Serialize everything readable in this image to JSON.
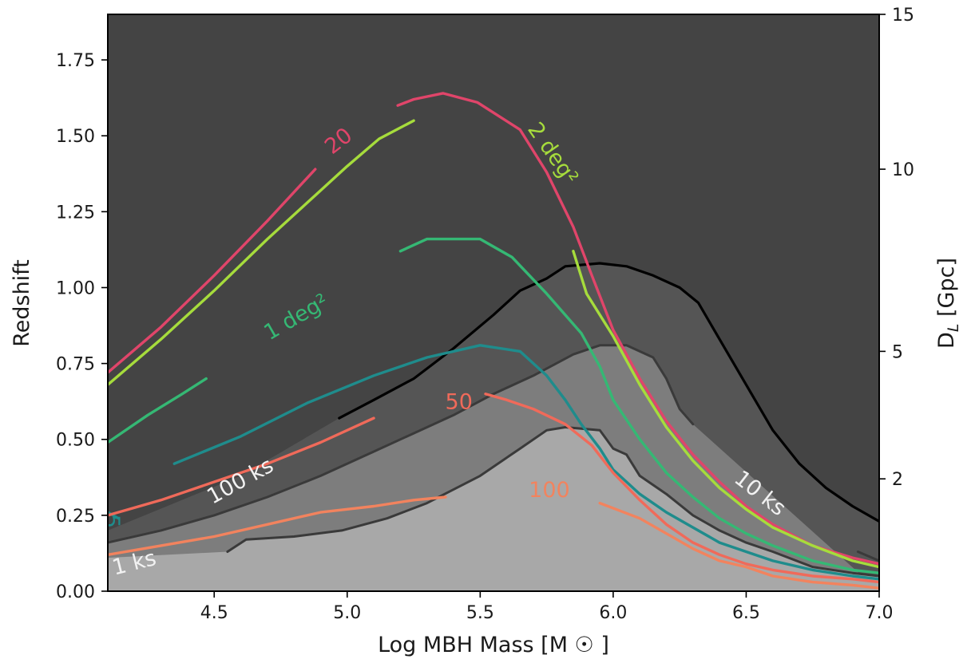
{
  "chart_data": {
    "type": "line",
    "xlabel": "Log MBH Mass [M ☉ ]",
    "ylabel": "Redshift",
    "y2label": "D_L [Gpc]",
    "xlim": [
      4.1,
      7.0
    ],
    "ylim": [
      0.0,
      1.9
    ],
    "xticks": [
      "4.5",
      "5.0",
      "5.5",
      "6.0",
      "6.5",
      "7.0"
    ],
    "yticks": [
      "0.00",
      "0.25",
      "0.50",
      "0.75",
      "1.00",
      "1.25",
      "1.50",
      "1.75"
    ],
    "y2ticks": [
      {
        "label": "2",
        "z": 0.37
      },
      {
        "label": "5",
        "z": 0.79
      },
      {
        "label": "10",
        "z": 1.39
      },
      {
        "label": "15",
        "z": 1.93
      }
    ],
    "colors": {
      "background": "#444444",
      "fill_light": "#a8a8a8",
      "black": "#000000",
      "grey": "#3a3a3a",
      "pink": "#e0456a",
      "lime": "#a6dc3c",
      "green": "#35b874",
      "teal": "#1f8c8c",
      "salmon": "#f06a5a",
      "orange": "#f2835e"
    },
    "series": [
      {
        "style": "grey",
        "points": [
          [
            4.55,
            0.13
          ],
          [
            4.62,
            0.17
          ],
          [
            4.8,
            0.18
          ],
          [
            4.98,
            0.2
          ],
          [
            5.15,
            0.24
          ],
          [
            5.3,
            0.29
          ],
          [
            5.5,
            0.38
          ],
          [
            5.65,
            0.47
          ],
          [
            5.75,
            0.53
          ],
          [
            5.82,
            0.54
          ],
          [
            5.95,
            0.53
          ],
          [
            6.0,
            0.47
          ],
          [
            6.05,
            0.45
          ],
          [
            6.1,
            0.38
          ],
          [
            6.2,
            0.32
          ],
          [
            6.3,
            0.25
          ],
          [
            6.4,
            0.2
          ],
          [
            6.5,
            0.16
          ],
          [
            6.6,
            0.13
          ],
          [
            6.75,
            0.08
          ],
          [
            6.9,
            0.06
          ],
          [
            7.0,
            0.05
          ]
        ]
      },
      {
        "style": "grey",
        "points": [
          [
            4.1,
            0.16
          ],
          [
            4.3,
            0.2
          ],
          [
            4.5,
            0.25
          ],
          [
            4.7,
            0.31
          ],
          [
            4.9,
            0.38
          ],
          [
            5.1,
            0.46
          ],
          [
            5.25,
            0.52
          ],
          [
            5.4,
            0.58
          ],
          [
            5.55,
            0.65
          ],
          [
            5.7,
            0.71
          ],
          [
            5.85,
            0.78
          ],
          [
            5.95,
            0.81
          ],
          [
            6.05,
            0.81
          ],
          [
            6.15,
            0.77
          ],
          [
            6.2,
            0.7
          ],
          [
            6.25,
            0.6
          ],
          [
            6.3,
            0.55
          ]
        ]
      },
      {
        "style": "grey",
        "points": [
          [
            6.92,
            0.13
          ],
          [
            7.0,
            0.1
          ]
        ]
      },
      {
        "style": "black",
        "points": [
          [
            4.97,
            0.57
          ],
          [
            5.1,
            0.63
          ],
          [
            5.25,
            0.7
          ],
          [
            5.4,
            0.8
          ],
          [
            5.55,
            0.91
          ],
          [
            5.65,
            0.99
          ],
          [
            5.75,
            1.03
          ],
          [
            5.82,
            1.07
          ],
          [
            5.95,
            1.08
          ],
          [
            6.05,
            1.07
          ],
          [
            6.15,
            1.04
          ],
          [
            6.25,
            1.0
          ],
          [
            6.32,
            0.95
          ],
          [
            6.4,
            0.83
          ],
          [
            6.5,
            0.68
          ],
          [
            6.6,
            0.53
          ],
          [
            6.7,
            0.42
          ],
          [
            6.8,
            0.34
          ],
          [
            6.9,
            0.28
          ],
          [
            7.0,
            0.23
          ]
        ]
      },
      {
        "style": "pink",
        "points": [
          [
            4.1,
            0.72
          ],
          [
            4.3,
            0.87
          ],
          [
            4.5,
            1.04
          ],
          [
            4.7,
            1.22
          ],
          [
            4.88,
            1.39
          ]
        ]
      },
      {
        "style": "pink",
        "points": [
          [
            5.19,
            1.6
          ],
          [
            5.25,
            1.62
          ],
          [
            5.36,
            1.64
          ],
          [
            5.49,
            1.61
          ],
          [
            5.65,
            1.52
          ],
          [
            5.75,
            1.38
          ],
          [
            5.85,
            1.2
          ],
          [
            5.92,
            1.04
          ],
          [
            6.0,
            0.86
          ],
          [
            6.1,
            0.7
          ],
          [
            6.2,
            0.56
          ],
          [
            6.3,
            0.45
          ],
          [
            6.4,
            0.36
          ],
          [
            6.5,
            0.28
          ],
          [
            6.6,
            0.22
          ],
          [
            6.75,
            0.15
          ],
          [
            6.9,
            0.11
          ],
          [
            7.0,
            0.09
          ]
        ]
      },
      {
        "style": "lime",
        "points": [
          [
            4.1,
            0.68
          ],
          [
            4.3,
            0.83
          ],
          [
            4.5,
            0.99
          ],
          [
            4.7,
            1.16
          ],
          [
            4.9,
            1.32
          ],
          [
            5.0,
            1.4
          ],
          [
            5.12,
            1.49
          ],
          [
            5.25,
            1.55
          ]
        ]
      },
      {
        "style": "lime",
        "points": [
          [
            5.85,
            1.12
          ],
          [
            5.9,
            0.98
          ],
          [
            6.0,
            0.84
          ],
          [
            6.1,
            0.68
          ],
          [
            6.2,
            0.54
          ],
          [
            6.3,
            0.43
          ],
          [
            6.4,
            0.34
          ],
          [
            6.5,
            0.27
          ],
          [
            6.6,
            0.21
          ],
          [
            6.75,
            0.15
          ],
          [
            6.9,
            0.1
          ],
          [
            7.0,
            0.08
          ]
        ]
      },
      {
        "style": "green",
        "points": [
          [
            4.1,
            0.49
          ],
          [
            4.25,
            0.58
          ],
          [
            4.38,
            0.65
          ],
          [
            4.47,
            0.7
          ]
        ]
      },
      {
        "style": "green",
        "points": [
          [
            5.2,
            1.12
          ],
          [
            5.3,
            1.16
          ],
          [
            5.5,
            1.16
          ],
          [
            5.62,
            1.1
          ],
          [
            5.75,
            0.98
          ],
          [
            5.88,
            0.85
          ],
          [
            5.95,
            0.74
          ],
          [
            6.0,
            0.63
          ],
          [
            6.1,
            0.5
          ],
          [
            6.2,
            0.39
          ],
          [
            6.3,
            0.31
          ],
          [
            6.4,
            0.24
          ],
          [
            6.5,
            0.19
          ],
          [
            6.6,
            0.15
          ],
          [
            6.75,
            0.1
          ],
          [
            6.9,
            0.07
          ],
          [
            7.0,
            0.06
          ]
        ]
      },
      {
        "style": "teal",
        "points": [
          [
            4.35,
            0.42
          ],
          [
            4.6,
            0.51
          ],
          [
            4.85,
            0.62
          ],
          [
            5.1,
            0.71
          ],
          [
            5.3,
            0.77
          ],
          [
            5.5,
            0.81
          ],
          [
            5.65,
            0.79
          ],
          [
            5.75,
            0.71
          ],
          [
            5.82,
            0.63
          ],
          [
            5.88,
            0.55
          ],
          [
            5.95,
            0.47
          ],
          [
            6.0,
            0.4
          ],
          [
            6.1,
            0.32
          ],
          [
            6.2,
            0.26
          ],
          [
            6.3,
            0.21
          ],
          [
            6.4,
            0.16
          ],
          [
            6.5,
            0.13
          ],
          [
            6.6,
            0.1
          ],
          [
            6.75,
            0.07
          ],
          [
            6.9,
            0.05
          ],
          [
            7.0,
            0.04
          ]
        ]
      },
      {
        "style": "teal",
        "points": [
          [
            4.1,
            0.26
          ],
          [
            4.14,
            0.24
          ]
        ]
      },
      {
        "style": "salmon",
        "points": [
          [
            4.1,
            0.25
          ],
          [
            4.3,
            0.3
          ],
          [
            4.5,
            0.36
          ],
          [
            4.7,
            0.42
          ],
          [
            4.9,
            0.49
          ],
          [
            5.1,
            0.57
          ]
        ]
      },
      {
        "style": "salmon",
        "points": [
          [
            5.52,
            0.65
          ],
          [
            5.6,
            0.63
          ],
          [
            5.7,
            0.6
          ],
          [
            5.82,
            0.55
          ],
          [
            5.92,
            0.48
          ],
          [
            6.0,
            0.39
          ],
          [
            6.1,
            0.3
          ],
          [
            6.2,
            0.22
          ],
          [
            6.3,
            0.16
          ],
          [
            6.4,
            0.12
          ],
          [
            6.5,
            0.09
          ],
          [
            6.6,
            0.07
          ],
          [
            6.75,
            0.05
          ],
          [
            6.9,
            0.04
          ],
          [
            7.0,
            0.03
          ]
        ]
      },
      {
        "style": "orange",
        "points": [
          [
            4.1,
            0.12
          ],
          [
            4.3,
            0.15
          ],
          [
            4.5,
            0.18
          ],
          [
            4.7,
            0.22
          ],
          [
            4.9,
            0.26
          ],
          [
            5.1,
            0.28
          ],
          [
            5.25,
            0.3
          ],
          [
            5.37,
            0.31
          ]
        ]
      },
      {
        "style": "orange",
        "points": [
          [
            5.95,
            0.29
          ],
          [
            6.1,
            0.24
          ],
          [
            6.2,
            0.19
          ],
          [
            6.3,
            0.14
          ],
          [
            6.4,
            0.1
          ],
          [
            6.5,
            0.08
          ],
          [
            6.6,
            0.05
          ],
          [
            6.75,
            0.03
          ],
          [
            6.9,
            0.02
          ],
          [
            7.0,
            0.01
          ]
        ]
      }
    ],
    "labels": [
      {
        "text": "20",
        "x": 4.97,
        "y": 1.48,
        "angle": -38,
        "style": "pink"
      },
      {
        "text": "2 deg²",
        "x": 5.77,
        "y": 1.44,
        "angle": 55,
        "style": "lime"
      },
      {
        "text": "1 deg²",
        "x": 4.81,
        "y": 0.9,
        "angle": -30,
        "style": "green"
      },
      {
        "text": "50",
        "x": 5.42,
        "y": 0.62,
        "angle": 0,
        "style": "salmon"
      },
      {
        "text": "100",
        "x": 5.76,
        "y": 0.33,
        "angle": 0,
        "style": "orange"
      },
      {
        "text": "100 ks",
        "x": 4.6,
        "y": 0.36,
        "angle": -29,
        "style": "white"
      },
      {
        "text": "10 ks",
        "x": 6.55,
        "y": 0.32,
        "angle": 38,
        "style": "white"
      },
      {
        "text": "1 ks",
        "x": 4.2,
        "y": 0.09,
        "angle": -14,
        "style": "white"
      },
      {
        "text": "5",
        "x": 4.11,
        "y": 0.23,
        "angle": 90,
        "style": "teal"
      }
    ]
  }
}
